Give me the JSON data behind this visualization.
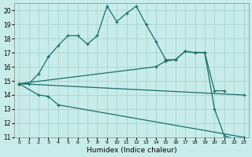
{
  "xlabel": "Humidex (Indice chaleur)",
  "bg_color": "#c8ece9",
  "grid_color": "#aad8d4",
  "line_color": "#1a6e6a",
  "xlim": [
    -0.5,
    23.5
  ],
  "ylim": [
    11,
    20.5
  ],
  "yticks": [
    11,
    12,
    13,
    14,
    15,
    16,
    17,
    18,
    19,
    20
  ],
  "xticks": [
    0,
    1,
    2,
    3,
    4,
    5,
    6,
    7,
    8,
    9,
    10,
    11,
    12,
    13,
    14,
    15,
    16,
    17,
    18,
    19,
    20,
    21,
    22,
    23
  ],
  "series1_x": [
    0,
    1,
    2,
    3,
    4,
    5,
    6,
    7,
    8,
    9,
    10,
    11,
    12,
    13,
    14,
    15,
    16,
    17,
    18,
    19,
    20,
    21,
    22,
    23
  ],
  "series1_y": [
    14.8,
    14.8,
    15.5,
    16.7,
    17.5,
    18.2,
    18.2,
    17.6,
    18.2,
    20.3,
    19.2,
    19.8,
    20.3,
    19.0,
    17.8,
    16.5,
    16.5,
    17.1,
    17.0,
    17.0,
    13.0,
    11.1,
    10.9,
    10.9
  ],
  "series2_x": [
    0,
    2,
    3,
    4,
    23
  ],
  "series2_y": [
    14.8,
    14.0,
    13.9,
    13.3,
    11.0
  ],
  "series3_x": [
    0,
    23
  ],
  "series3_y": [
    14.8,
    14.0
  ],
  "series4_x": [
    0,
    14,
    15,
    16,
    17,
    18,
    19,
    20,
    21
  ],
  "series4_y": [
    14.8,
    16.0,
    16.4,
    16.5,
    17.1,
    17.0,
    17.0,
    14.3,
    14.3
  ]
}
